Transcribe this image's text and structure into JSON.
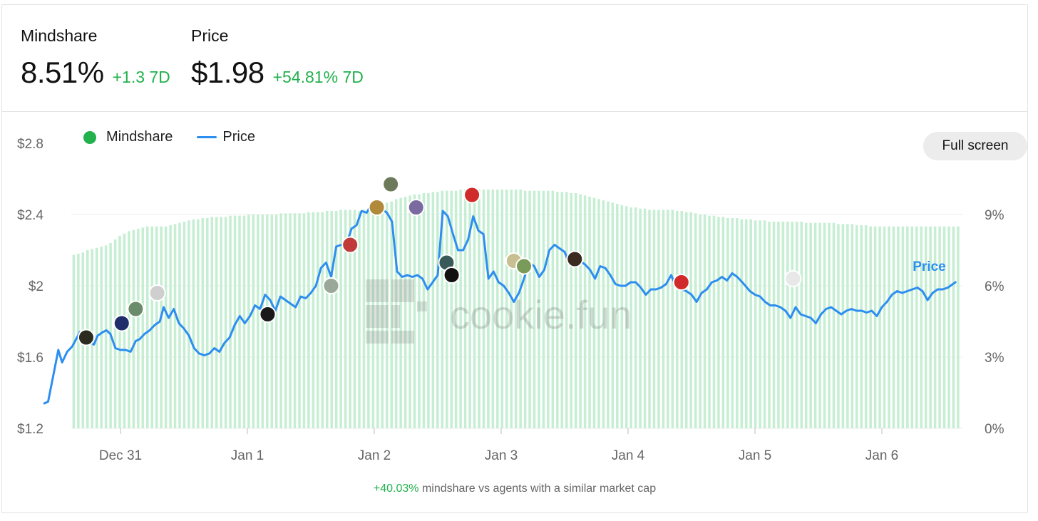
{
  "header": {
    "mindshare": {
      "label": "Mindshare",
      "value": "8.51%",
      "change": "+1.3 7D"
    },
    "price": {
      "label": "Price",
      "value": "$1.98",
      "change": "+54.81% 7D"
    }
  },
  "toolbar": {
    "fullscreen_label": "Full screen"
  },
  "legend": {
    "mindshare_label": "Mindshare",
    "price_label": "Price"
  },
  "footnote": {
    "highlight": "+40.03%",
    "text": " mindshare vs agents with a similar market cap"
  },
  "colors": {
    "price_line": "#2d8ef0",
    "mindshare_bar": "#c6eed3",
    "positive": "#22b14c",
    "grid": "#eeeeee",
    "avatar_ring": "#ffffff"
  },
  "chart_data": {
    "type": "bar+line",
    "x_ticks": [
      "Dec 31",
      "Jan 1",
      "Jan 2",
      "Jan 3",
      "Jan 4",
      "Jan 5",
      "Jan 6"
    ],
    "x_range_days": [
      -0.62,
      6.58
    ],
    "left_axis": {
      "ticks": [
        "$2.8",
        "$2.4",
        "$2",
        "$1.6",
        "$1.2"
      ],
      "range": [
        1.2,
        2.8
      ]
    },
    "right_axis": {
      "ticks": [
        "9%",
        "6%",
        "3%",
        "0%"
      ],
      "range": [
        0,
        12
      ]
    },
    "price_series_label": "Price",
    "watermark": "cookie.fun",
    "series": [
      {
        "name": "Mindshare",
        "kind": "bar",
        "axis": "right",
        "values": [
          7.3,
          7.35,
          7.4,
          7.5,
          7.55,
          7.6,
          7.65,
          7.7,
          7.8,
          7.95,
          8.1,
          8.2,
          8.3,
          8.35,
          8.4,
          8.45,
          8.5,
          8.5,
          8.5,
          8.5,
          8.5,
          8.55,
          8.6,
          8.65,
          8.7,
          8.75,
          8.8,
          8.8,
          8.85,
          8.85,
          8.9,
          8.9,
          8.9,
          8.9,
          8.95,
          8.95,
          8.95,
          8.95,
          9.0,
          9.0,
          9.0,
          9.0,
          9.0,
          9.0,
          9.0,
          9.05,
          9.05,
          9.05,
          9.05,
          9.05,
          9.05,
          9.1,
          9.1,
          9.1,
          9.1,
          9.15,
          9.15,
          9.15,
          9.2,
          9.2,
          9.2,
          9.2,
          9.15,
          9.2,
          9.2,
          9.25,
          9.3,
          9.4,
          9.5,
          9.55,
          9.65,
          9.7,
          9.75,
          9.8,
          9.85,
          9.85,
          9.9,
          9.9,
          9.95,
          9.95,
          10.0,
          10.0,
          10.0,
          10.0,
          10.05,
          10.05,
          10.05,
          10.05,
          10.05,
          10.05,
          10.05,
          10.05,
          10.05,
          10.05,
          10.05,
          10.05,
          10.05,
          10.05,
          10.0,
          10.0,
          10.0,
          10.0,
          10.0,
          10.0,
          10.0,
          9.95,
          9.95,
          9.95,
          9.9,
          9.9,
          9.85,
          9.8,
          9.75,
          9.7,
          9.65,
          9.6,
          9.55,
          9.5,
          9.45,
          9.4,
          9.35,
          9.3,
          9.3,
          9.25,
          9.25,
          9.2,
          9.2,
          9.2,
          9.2,
          9.2,
          9.2,
          9.15,
          9.15,
          9.1,
          9.1,
          9.05,
          9.0,
          9.0,
          8.95,
          8.95,
          8.9,
          8.9,
          8.85,
          8.85,
          8.85,
          8.8,
          8.8,
          8.8,
          8.75,
          8.75,
          8.75,
          8.7,
          8.7,
          8.7,
          8.7,
          8.7,
          8.7,
          8.7,
          8.7,
          8.65,
          8.65,
          8.65,
          8.65,
          8.65,
          8.65,
          8.65,
          8.6,
          8.6,
          8.6,
          8.6,
          8.55,
          8.55,
          8.55,
          8.5,
          8.5,
          8.5,
          8.5,
          8.5,
          8.5,
          8.5,
          8.5,
          8.5,
          8.5,
          8.5,
          8.5,
          8.5,
          8.5,
          8.5,
          8.5,
          8.5,
          8.5,
          8.5,
          8.5
        ]
      },
      {
        "name": "Price",
        "kind": "line",
        "axis": "left",
        "points": [
          [
            -0.6,
            1.34
          ],
          [
            -0.57,
            1.35
          ],
          [
            -0.52,
            1.53
          ],
          [
            -0.49,
            1.64
          ],
          [
            -0.46,
            1.57
          ],
          [
            -0.42,
            1.63
          ],
          [
            -0.38,
            1.66
          ],
          [
            -0.35,
            1.7
          ],
          [
            -0.32,
            1.74
          ],
          [
            -0.29,
            1.71
          ],
          [
            -0.25,
            1.69
          ],
          [
            -0.21,
            1.67
          ],
          [
            -0.18,
            1.72
          ],
          [
            -0.14,
            1.74
          ],
          [
            -0.11,
            1.75
          ],
          [
            -0.08,
            1.73
          ],
          [
            -0.04,
            1.65
          ],
          [
            0.0,
            1.64
          ],
          [
            0.04,
            1.64
          ],
          [
            0.08,
            1.63
          ],
          [
            0.12,
            1.69
          ],
          [
            0.15,
            1.7
          ],
          [
            0.19,
            1.73
          ],
          [
            0.23,
            1.75
          ],
          [
            0.27,
            1.78
          ],
          [
            0.31,
            1.8
          ],
          [
            0.34,
            1.88
          ],
          [
            0.38,
            1.82
          ],
          [
            0.42,
            1.87
          ],
          [
            0.46,
            1.79
          ],
          [
            0.5,
            1.76
          ],
          [
            0.54,
            1.72
          ],
          [
            0.58,
            1.65
          ],
          [
            0.62,
            1.62
          ],
          [
            0.66,
            1.61
          ],
          [
            0.7,
            1.62
          ],
          [
            0.74,
            1.65
          ],
          [
            0.78,
            1.63
          ],
          [
            0.82,
            1.68
          ],
          [
            0.86,
            1.71
          ],
          [
            0.9,
            1.78
          ],
          [
            0.94,
            1.83
          ],
          [
            0.98,
            1.79
          ],
          [
            1.02,
            1.83
          ],
          [
            1.06,
            1.89
          ],
          [
            1.1,
            1.87
          ],
          [
            1.14,
            1.95
          ],
          [
            1.18,
            1.92
          ],
          [
            1.22,
            1.86
          ],
          [
            1.26,
            1.94
          ],
          [
            1.3,
            1.92
          ],
          [
            1.34,
            1.9
          ],
          [
            1.38,
            1.88
          ],
          [
            1.42,
            1.94
          ],
          [
            1.46,
            1.93
          ],
          [
            1.5,
            1.96
          ],
          [
            1.54,
            2.0
          ],
          [
            1.58,
            2.1
          ],
          [
            1.62,
            2.13
          ],
          [
            1.66,
            2.05
          ],
          [
            1.7,
            2.22
          ],
          [
            1.74,
            2.23
          ],
          [
            1.78,
            2.23
          ],
          [
            1.82,
            2.32
          ],
          [
            1.86,
            2.34
          ],
          [
            1.9,
            2.42
          ],
          [
            1.94,
            2.41
          ],
          [
            1.98,
            2.46
          ],
          [
            2.02,
            2.47
          ],
          [
            2.06,
            2.43
          ],
          [
            2.1,
            2.41
          ],
          [
            2.14,
            2.36
          ],
          [
            2.18,
            2.08
          ],
          [
            2.22,
            2.05
          ],
          [
            2.26,
            2.06
          ],
          [
            2.3,
            2.05
          ],
          [
            2.34,
            2.06
          ],
          [
            2.38,
            2.04
          ],
          [
            2.42,
            1.98
          ],
          [
            2.46,
            2.02
          ],
          [
            2.5,
            2.06
          ],
          [
            2.54,
            2.42
          ],
          [
            2.58,
            2.39
          ],
          [
            2.62,
            2.29
          ],
          [
            2.66,
            2.2
          ],
          [
            2.7,
            2.2
          ],
          [
            2.74,
            2.26
          ],
          [
            2.78,
            2.39
          ],
          [
            2.82,
            2.31
          ],
          [
            2.86,
            2.29
          ],
          [
            2.9,
            2.04
          ],
          [
            2.94,
            2.08
          ],
          [
            2.98,
            2.02
          ],
          [
            3.02,
            2.0
          ],
          [
            3.06,
            1.96
          ],
          [
            3.1,
            1.91
          ],
          [
            3.14,
            1.96
          ],
          [
            3.18,
            2.04
          ],
          [
            3.22,
            2.13
          ],
          [
            3.26,
            2.11
          ],
          [
            3.3,
            2.05
          ],
          [
            3.34,
            2.09
          ],
          [
            3.38,
            2.2
          ],
          [
            3.42,
            2.23
          ],
          [
            3.46,
            2.21
          ],
          [
            3.5,
            2.19
          ],
          [
            3.54,
            2.12
          ],
          [
            3.58,
            2.15
          ],
          [
            3.62,
            2.14
          ],
          [
            3.66,
            2.12
          ],
          [
            3.7,
            2.09
          ],
          [
            3.74,
            2.04
          ],
          [
            3.78,
            2.11
          ],
          [
            3.82,
            2.1
          ],
          [
            3.86,
            2.06
          ],
          [
            3.9,
            2.01
          ],
          [
            3.94,
            2.0
          ],
          [
            3.98,
            2.0
          ],
          [
            4.02,
            2.02
          ],
          [
            4.06,
            2.02
          ],
          [
            4.1,
            1.99
          ],
          [
            4.14,
            1.95
          ],
          [
            4.18,
            1.98
          ],
          [
            4.22,
            1.98
          ],
          [
            4.26,
            1.99
          ],
          [
            4.3,
            2.01
          ],
          [
            4.34,
            2.06
          ],
          [
            4.38,
            1.99
          ],
          [
            4.42,
            1.98
          ],
          [
            4.46,
            1.97
          ],
          [
            4.5,
            1.95
          ],
          [
            4.54,
            1.91
          ],
          [
            4.58,
            1.96
          ],
          [
            4.62,
            1.98
          ],
          [
            4.66,
            2.02
          ],
          [
            4.7,
            2.03
          ],
          [
            4.74,
            2.05
          ],
          [
            4.78,
            2.03
          ],
          [
            4.82,
            2.07
          ],
          [
            4.86,
            2.05
          ],
          [
            4.9,
            2.02
          ],
          [
            4.96,
            1.97
          ],
          [
            5.0,
            1.95
          ],
          [
            5.04,
            1.94
          ],
          [
            5.08,
            1.91
          ],
          [
            5.12,
            1.89
          ],
          [
            5.16,
            1.89
          ],
          [
            5.2,
            1.88
          ],
          [
            5.24,
            1.86
          ],
          [
            5.28,
            1.82
          ],
          [
            5.32,
            1.88
          ],
          [
            5.36,
            1.84
          ],
          [
            5.4,
            1.83
          ],
          [
            5.44,
            1.82
          ],
          [
            5.48,
            1.79
          ],
          [
            5.52,
            1.84
          ],
          [
            5.56,
            1.87
          ],
          [
            5.6,
            1.88
          ],
          [
            5.64,
            1.86
          ],
          [
            5.68,
            1.84
          ],
          [
            5.72,
            1.86
          ],
          [
            5.76,
            1.87
          ],
          [
            5.8,
            1.86
          ],
          [
            5.84,
            1.86
          ],
          [
            5.88,
            1.85
          ],
          [
            5.92,
            1.86
          ],
          [
            5.96,
            1.83
          ],
          [
            6.0,
            1.88
          ],
          [
            6.04,
            1.91
          ],
          [
            6.08,
            1.95
          ],
          [
            6.12,
            1.97
          ],
          [
            6.16,
            1.96
          ],
          [
            6.2,
            1.97
          ],
          [
            6.24,
            1.98
          ],
          [
            6.28,
            1.99
          ],
          [
            6.32,
            1.97
          ],
          [
            6.36,
            1.92
          ],
          [
            6.4,
            1.96
          ],
          [
            6.44,
            1.98
          ],
          [
            6.48,
            1.98
          ],
          [
            6.52,
            1.99
          ],
          [
            6.58,
            2.02
          ]
        ]
      }
    ],
    "avatars": [
      {
        "name": "avatar-1",
        "x": -0.27,
        "y": 1.71,
        "color": "#2b2b20"
      },
      {
        "name": "avatar-2",
        "x": 0.01,
        "y": 1.79,
        "color": "#1f2e6b"
      },
      {
        "name": "avatar-3",
        "x": 0.12,
        "y": 1.87,
        "color": "#6b8c6a"
      },
      {
        "name": "avatar-4",
        "x": 0.29,
        "y": 1.96,
        "color": "#cfcfcf"
      },
      {
        "name": "avatar-5",
        "x": 1.16,
        "y": 1.84,
        "color": "#1a1a1a"
      },
      {
        "name": "avatar-6",
        "x": 1.66,
        "y": 2.0,
        "color": "#9aa89a"
      },
      {
        "name": "avatar-7",
        "x": 1.81,
        "y": 2.23,
        "color": "#c03a3a"
      },
      {
        "name": "avatar-8",
        "x": 2.02,
        "y": 2.44,
        "color": "#b08a3a"
      },
      {
        "name": "avatar-9",
        "x": 2.13,
        "y": 2.57,
        "color": "#6c7a5a"
      },
      {
        "name": "avatar-10",
        "x": 2.33,
        "y": 2.44,
        "color": "#7a6aa0"
      },
      {
        "name": "avatar-11",
        "x": 2.57,
        "y": 2.13,
        "color": "#3a5a5a"
      },
      {
        "name": "avatar-12",
        "x": 2.61,
        "y": 2.06,
        "color": "#111111"
      },
      {
        "name": "avatar-13",
        "x": 2.77,
        "y": 2.51,
        "color": "#d02a2a"
      },
      {
        "name": "avatar-14",
        "x": 3.1,
        "y": 2.14,
        "color": "#c8c090"
      },
      {
        "name": "avatar-15",
        "x": 3.18,
        "y": 2.11,
        "color": "#7a9a5a"
      },
      {
        "name": "avatar-16",
        "x": 3.58,
        "y": 2.15,
        "color": "#3a2a20"
      },
      {
        "name": "avatar-17",
        "x": 4.42,
        "y": 2.02,
        "color": "#d02a2a"
      },
      {
        "name": "avatar-18",
        "x": 5.3,
        "y": 2.04,
        "color": "#e8e8e8"
      }
    ]
  }
}
